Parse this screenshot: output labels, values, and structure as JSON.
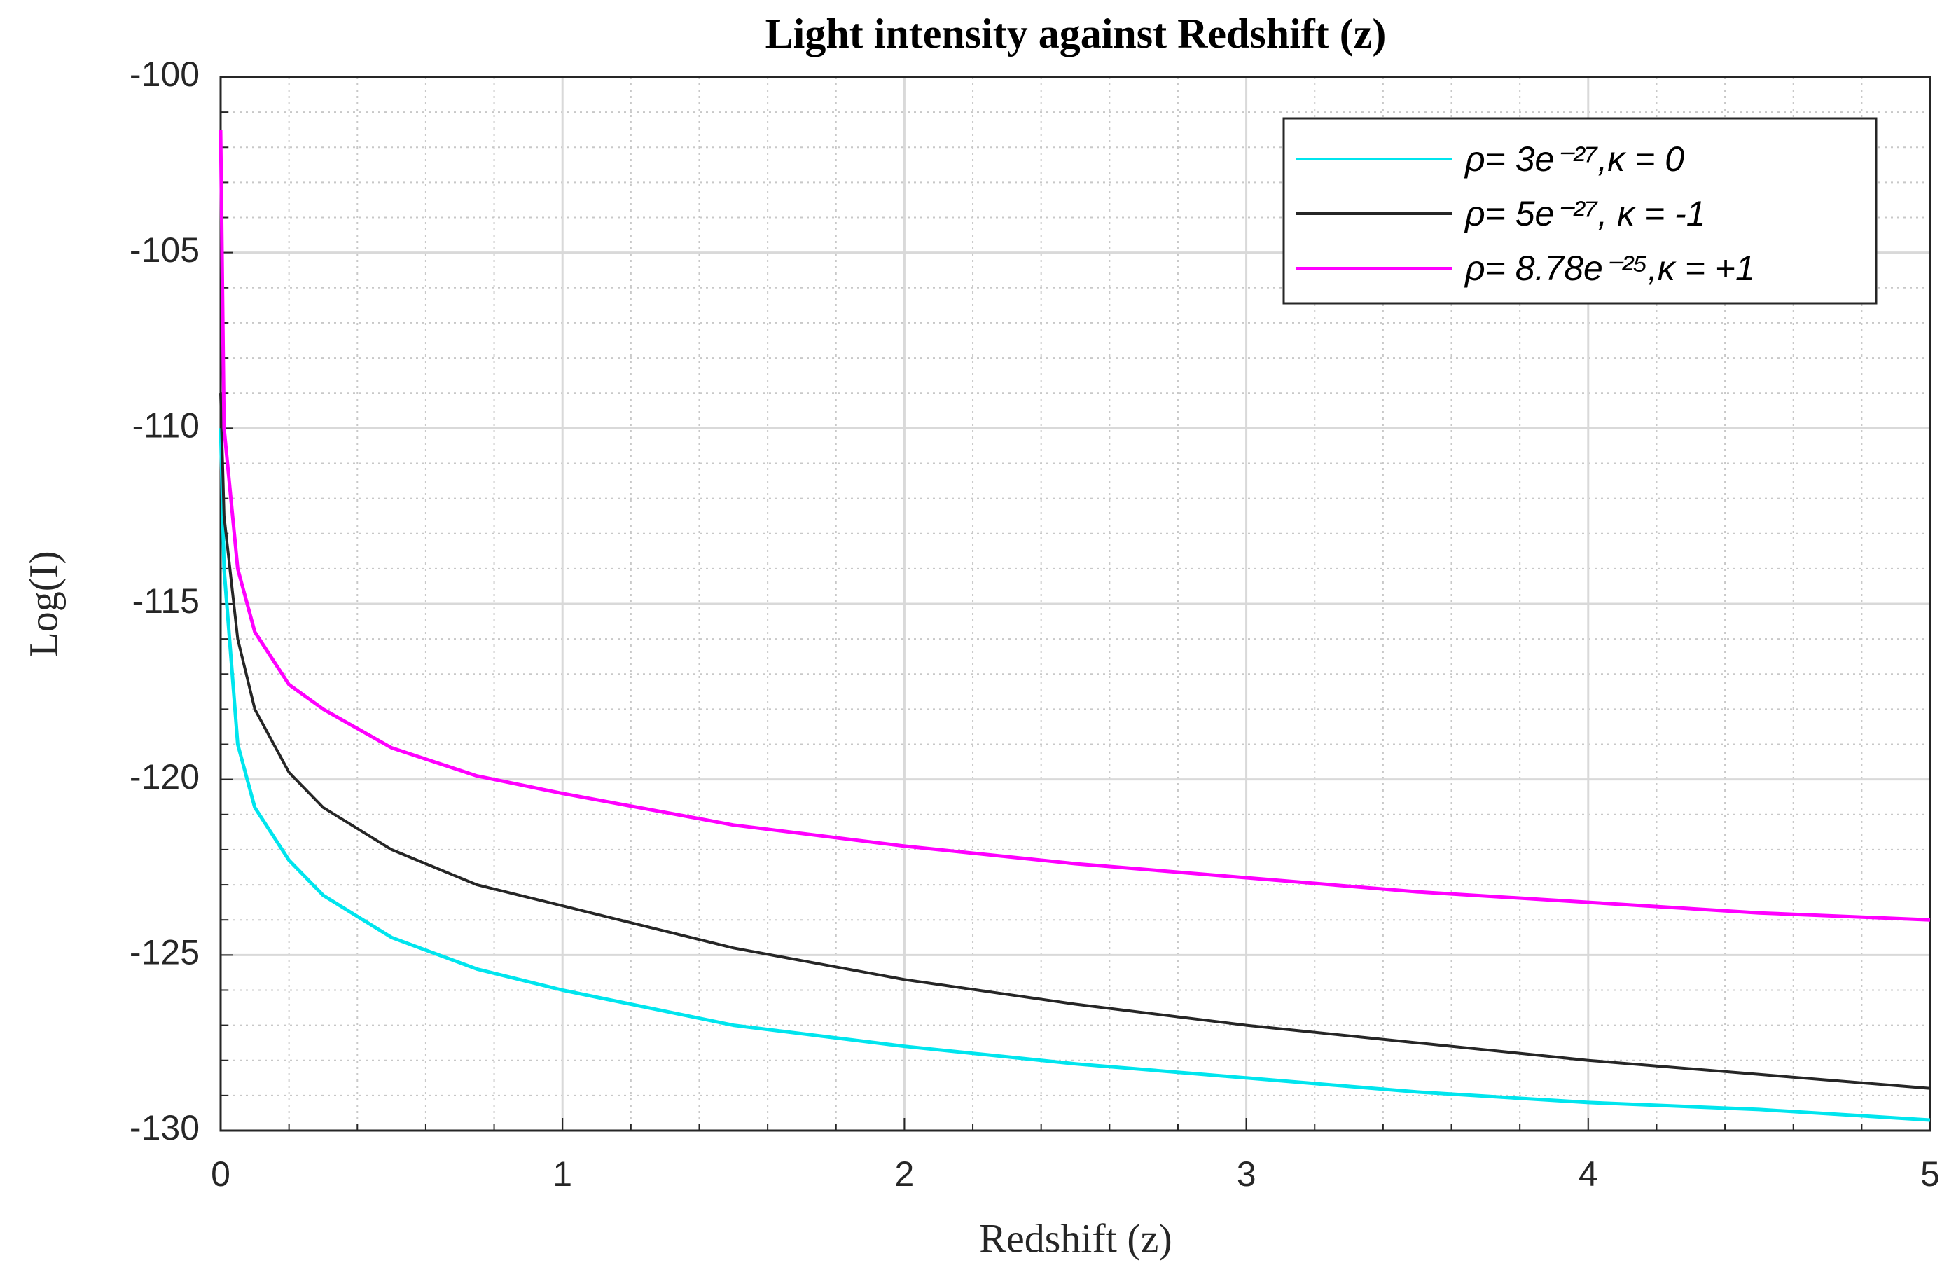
{
  "chart_data": {
    "type": "line",
    "title": "Light intensity against Redshift (z)",
    "x_label": "Redshift (z)",
    "y_label": "Log(I)",
    "x": [
      0,
      0.01,
      0.05,
      0.1,
      0.2,
      0.3,
      0.5,
      0.75,
      1,
      1.5,
      2,
      2.5,
      3,
      3.5,
      4,
      4.5,
      5
    ],
    "series": [
      {
        "name": "ρ= 3e⁻²⁷,κ = 0",
        "color": "#00e5ee",
        "values": [
          -110,
          -114,
          -119,
          -120.8,
          -122.3,
          -123.3,
          -124.5,
          -125.4,
          -126,
          -127,
          -127.6,
          -128.1,
          -128.5,
          -128.9,
          -129.2,
          -129.4,
          -129.7
        ]
      },
      {
        "name": "ρ= 5e⁻²⁷, κ = -1",
        "color": "#262626",
        "values": [
          -109,
          -112.5,
          -116,
          -118,
          -119.8,
          -120.8,
          -122,
          -123,
          -123.6,
          -124.8,
          -125.7,
          -126.4,
          -127,
          -127.5,
          -128,
          -128.4,
          -128.8
        ]
      },
      {
        "name": "ρ= 8.78e⁻²⁵,κ = +1",
        "color": "#ff00ff",
        "values": [
          -101.5,
          -110,
          -114,
          -115.8,
          -117.3,
          -118,
          -119.1,
          -119.9,
          -120.4,
          -121.3,
          -121.9,
          -122.4,
          -122.8,
          -123.2,
          -123.5,
          -123.8,
          -124
        ]
      }
    ],
    "xlim": [
      0,
      5
    ],
    "xticks": [
      0,
      1,
      2,
      3,
      4,
      5
    ],
    "ylim": [
      -130,
      -100
    ],
    "yticks": [
      -130,
      -125,
      -120,
      -115,
      -110,
      -105,
      -100
    ],
    "grid": true,
    "minor_grid": true,
    "legend": "upper right"
  }
}
